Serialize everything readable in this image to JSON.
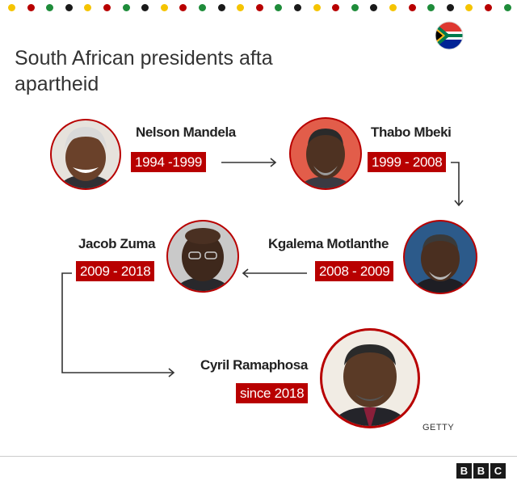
{
  "title": "South African presidents afta apartheid",
  "colors": {
    "accent_red": "#b80000",
    "dot_palette": [
      "#f5c400",
      "#b80000",
      "#1e8c3a",
      "#1a1a1a"
    ]
  },
  "icons": {
    "flag": "south-africa-flag-icon",
    "logo": "bbc-logo"
  },
  "presidents": [
    {
      "name": "Nelson Mandela",
      "term": "1994 -1999",
      "portrait": "portrait-photo"
    },
    {
      "name": "Thabo Mbeki",
      "term": "1999 - 2008",
      "portrait": "portrait-photo"
    },
    {
      "name": "Kgalema Motlanthe",
      "term": "2008 - 2009",
      "portrait": "portrait-photo"
    },
    {
      "name": "Jacob Zuma",
      "term": "2009 - 2018",
      "portrait": "portrait-photo"
    },
    {
      "name": "Cyril Ramaphosa",
      "term": "since 2018",
      "portrait": "portrait-photo"
    }
  ],
  "credit": "GETTY",
  "branding": {
    "letters": [
      "B",
      "B",
      "C"
    ]
  }
}
